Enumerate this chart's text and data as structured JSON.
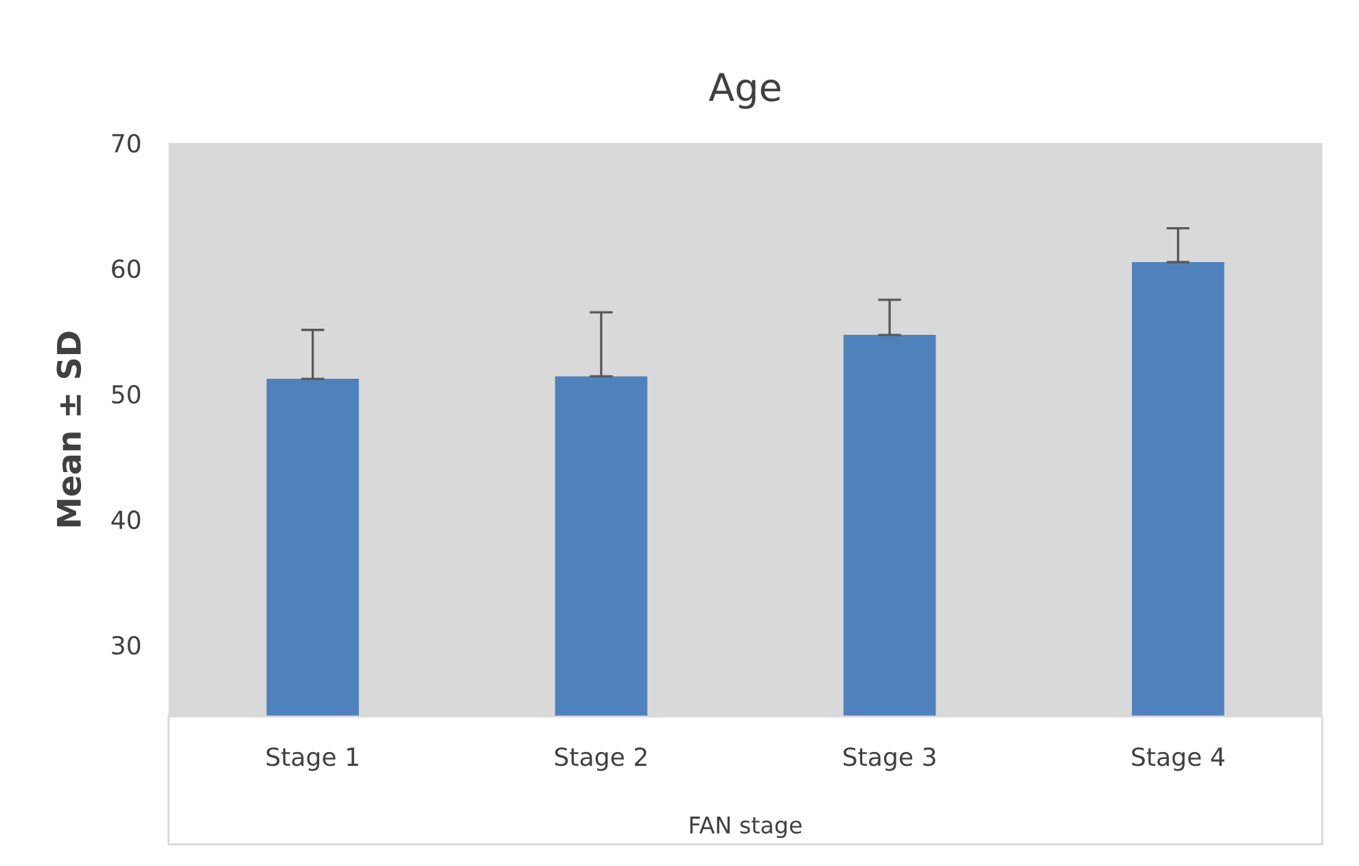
{
  "chart_data": {
    "type": "bar",
    "title": "Age",
    "xlabel": "FAN stage",
    "ylabel": "Mean ± SD",
    "categories": [
      "Stage 1",
      "Stage 2",
      "Stage 3",
      "Stage 4"
    ],
    "values": [
      51.2,
      51.4,
      54.7,
      60.5
    ],
    "errors": [
      [
        51.2,
        55.1
      ],
      [
        51.4,
        56.5
      ],
      [
        54.7,
        57.5
      ],
      [
        60.5,
        63.2
      ]
    ],
    "color": "#4f81bd",
    "ylim": [
      24.3,
      70
    ],
    "yticks": [
      30,
      40,
      50,
      60,
      70
    ],
    "grid": false,
    "legend": false
  }
}
